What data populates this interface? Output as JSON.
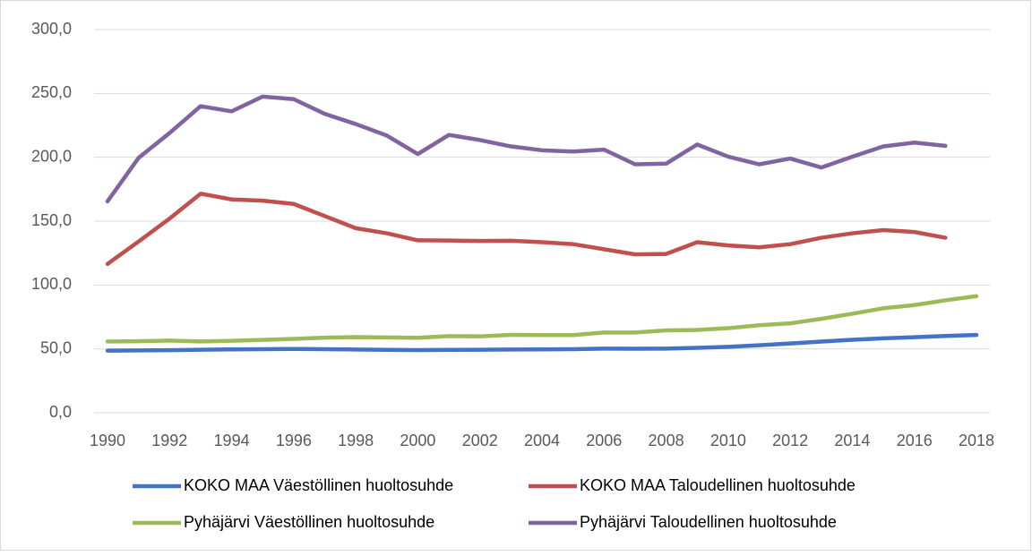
{
  "chart_data": {
    "type": "line",
    "x": [
      1990,
      1991,
      1992,
      1993,
      1994,
      1995,
      1996,
      1997,
      1998,
      1999,
      2000,
      2001,
      2002,
      2003,
      2004,
      2005,
      2006,
      2007,
      2008,
      2009,
      2010,
      2011,
      2012,
      2013,
      2014,
      2015,
      2016,
      2017,
      2018
    ],
    "xlim": [
      1990,
      2018
    ],
    "xticks": [
      1990,
      1992,
      1994,
      1996,
      1998,
      2000,
      2002,
      2004,
      2006,
      2008,
      2010,
      2012,
      2014,
      2016,
      2018
    ],
    "ylim": [
      0,
      300
    ],
    "yticks": [
      {
        "value": 0,
        "label": "0,0"
      },
      {
        "value": 50,
        "label": "50,0"
      },
      {
        "value": 100,
        "label": "100,0"
      },
      {
        "value": 150,
        "label": "150,0"
      },
      {
        "value": 200,
        "label": "200,0"
      },
      {
        "value": 250,
        "label": "250,0"
      },
      {
        "value": 300,
        "label": "300,0"
      }
    ],
    "grid": true,
    "legend": "bottom",
    "series": [
      {
        "name": "KOKO MAA Väestöllinen huoltosuhde",
        "color": "#4472c4",
        "values": [
          48.6,
          48.8,
          49.0,
          49.3,
          49.6,
          49.8,
          49.9,
          49.8,
          49.5,
          49.2,
          49.1,
          49.2,
          49.3,
          49.5,
          49.6,
          49.8,
          50.2,
          50.1,
          50.2,
          50.8,
          51.6,
          52.8,
          54.2,
          55.7,
          57.1,
          58.3,
          59.1,
          60.1,
          60.9
        ]
      },
      {
        "name": "KOKO MAA Taloudellinen huoltosuhde",
        "color": "#c0504d",
        "values": [
          116.5,
          134,
          152,
          171.5,
          167,
          166,
          163.5,
          154,
          144.5,
          140.5,
          135,
          134.8,
          134.5,
          134.7,
          133.5,
          132,
          128,
          124,
          124.3,
          133.5,
          131,
          129.5,
          132,
          137,
          140.5,
          143,
          141.5,
          137,
          null
        ]
      },
      {
        "name": "Pyhäjärvi Väestöllinen huoltosuhde",
        "color": "#9bbb59",
        "values": [
          55.8,
          56,
          56.5,
          55.8,
          56.3,
          57,
          57.8,
          58.8,
          59.2,
          59,
          58.7,
          60,
          59.8,
          61,
          60.8,
          60.8,
          62.8,
          62.8,
          64.5,
          64.8,
          66.2,
          68.5,
          70,
          73.5,
          77.5,
          81.8,
          84.3,
          88,
          91.3
        ]
      },
      {
        "name": "Pyhäjärvi Taloudellinen huoltosuhde",
        "color": "#8064a2",
        "values": [
          165.5,
          199.5,
          219,
          240,
          236,
          247.5,
          245.5,
          234,
          226,
          217,
          202.5,
          217.5,
          213.5,
          208.5,
          205.5,
          204.5,
          206,
          194.5,
          195,
          210,
          200.5,
          194.5,
          199,
          192,
          200.5,
          208.5,
          211.5,
          209,
          null
        ]
      }
    ]
  }
}
